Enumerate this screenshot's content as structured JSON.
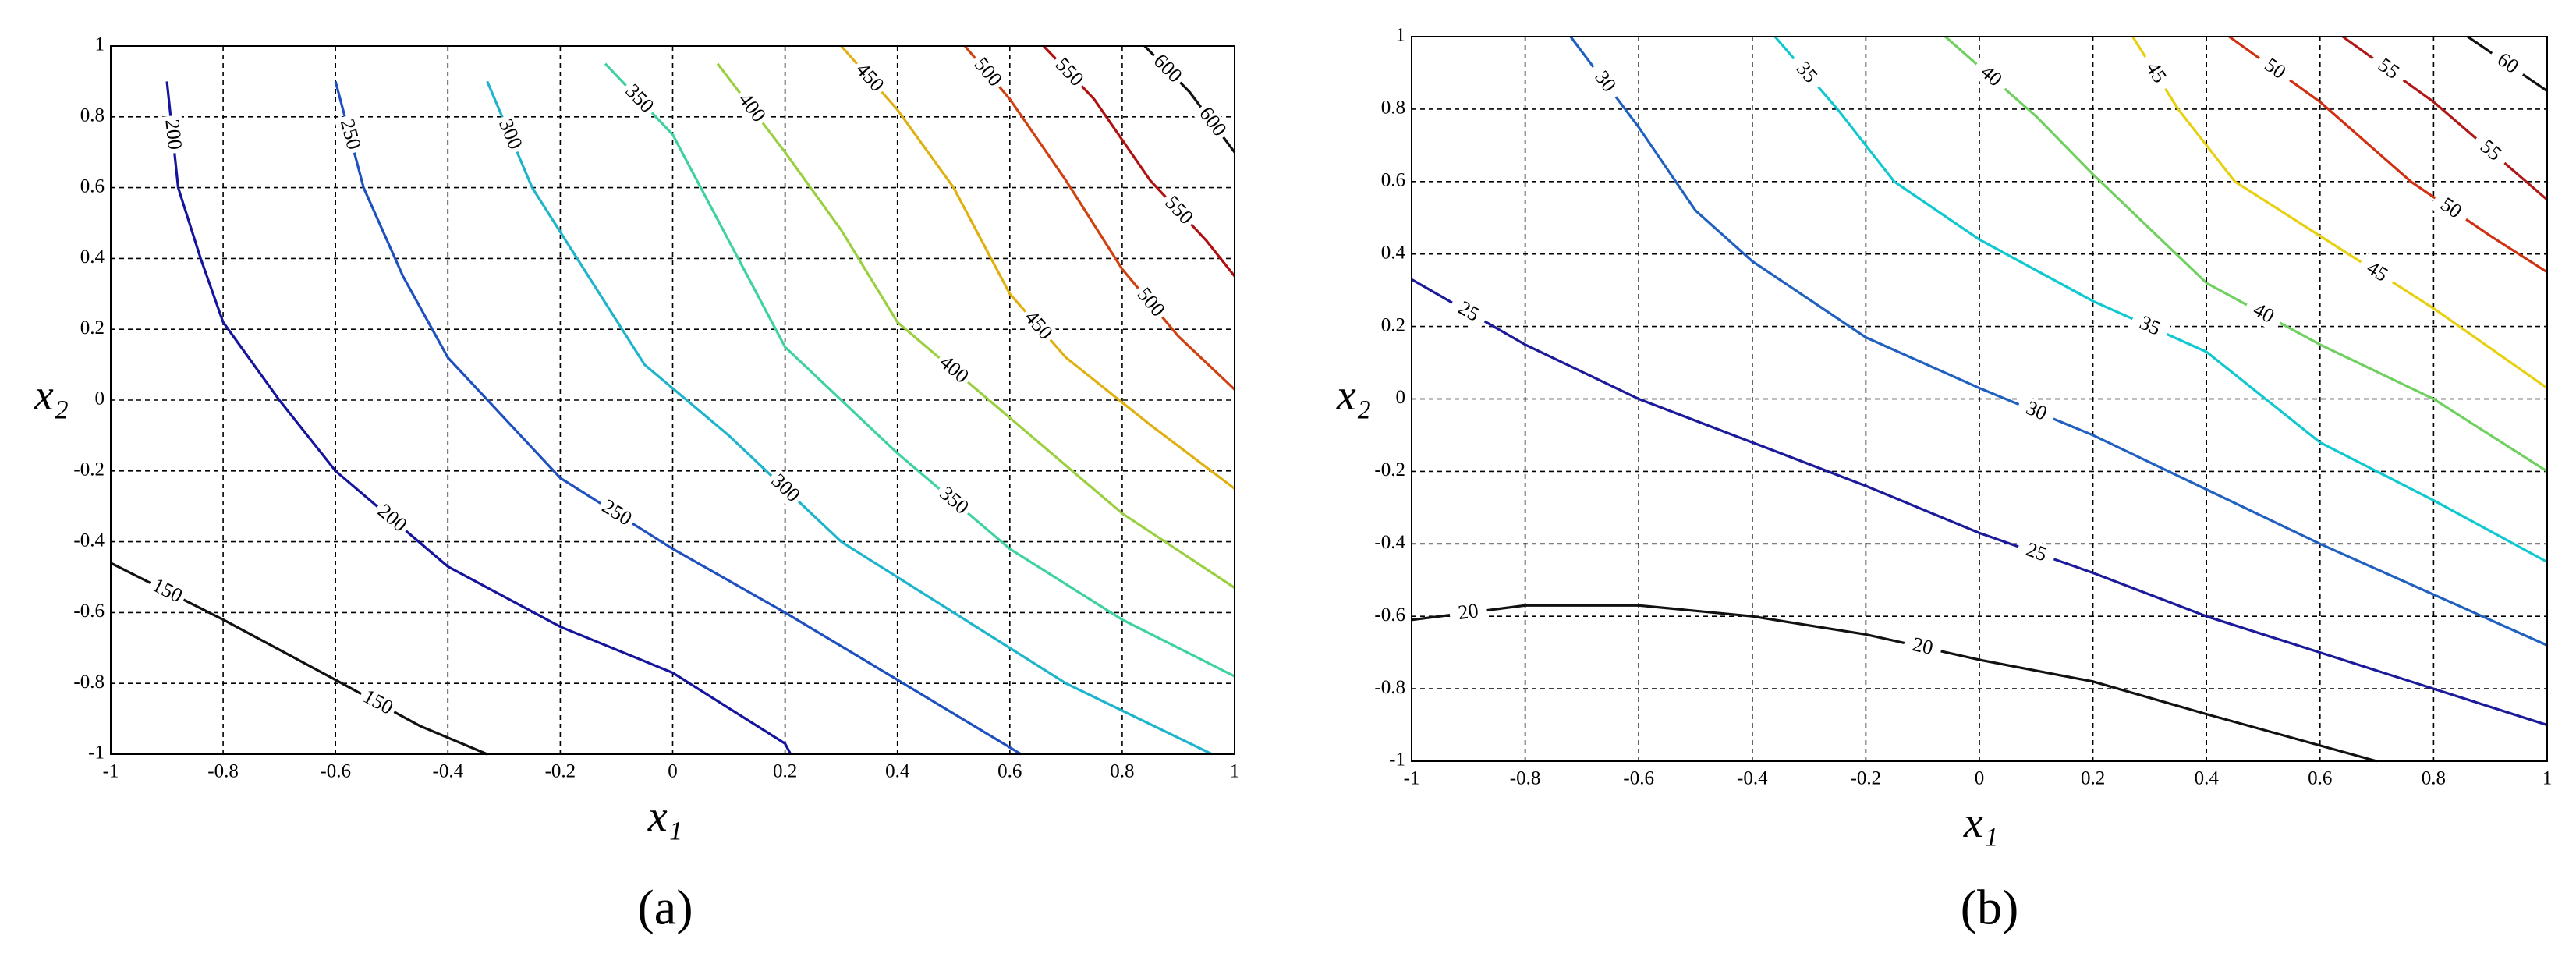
{
  "chart_data": [
    {
      "type": "contour",
      "xlabel": "x₁",
      "ylabel": "x₂",
      "caption": "(a)",
      "xlim": [
        -1,
        1
      ],
      "ylim": [
        -1,
        1
      ],
      "xticks": [
        -1,
        -0.8,
        -0.6,
        -0.4,
        -0.2,
        0,
        0.2,
        0.4,
        0.6,
        0.8,
        1
      ],
      "yticks": [
        -1,
        -0.8,
        -0.6,
        -0.4,
        -0.2,
        0,
        0.2,
        0.4,
        0.6,
        0.8,
        1
      ],
      "grid": true,
      "series": [
        {
          "level": 150,
          "color": "#111111",
          "x": [
            -1,
            -0.8,
            -0.6,
            -0.45,
            -0.33
          ],
          "y": [
            -0.46,
            -0.62,
            -0.79,
            -0.92,
            -1
          ]
        },
        {
          "level": 200,
          "color": "#14149c",
          "x": [
            -0.9,
            -0.88,
            -0.84,
            -0.8,
            -0.7,
            -0.6,
            -0.4,
            -0.2,
            0,
            0.2,
            0.21
          ],
          "y": [
            0.9,
            0.6,
            0.4,
            0.22,
            0.0,
            -0.2,
            -0.47,
            -0.64,
            -0.77,
            -0.97,
            -1
          ]
        },
        {
          "level": 250,
          "color": "#1f50c0",
          "x": [
            -0.6,
            -0.55,
            -0.48,
            -0.4,
            -0.2,
            0,
            0.2,
            0.4,
            0.62
          ],
          "y": [
            0.9,
            0.6,
            0.35,
            0.12,
            -0.22,
            -0.42,
            -0.6,
            -0.79,
            -1
          ]
        },
        {
          "level": 300,
          "color": "#1eb4cc",
          "x": [
            -0.33,
            -0.25,
            -0.15,
            -0.05,
            0.1,
            0.3,
            0.5,
            0.7,
            0.96
          ],
          "y": [
            0.9,
            0.6,
            0.35,
            0.1,
            -0.1,
            -0.4,
            -0.6,
            -0.8,
            -1
          ]
        },
        {
          "level": 350,
          "color": "#3ed2a0",
          "x": [
            -0.12,
            0,
            0.1,
            0.2,
            0.4,
            0.6,
            0.8,
            1
          ],
          "y": [
            0.95,
            0.75,
            0.45,
            0.15,
            -0.15,
            -0.42,
            -0.62,
            -0.78
          ]
        },
        {
          "level": 400,
          "color": "#9ad040",
          "x": [
            0.08,
            0.2,
            0.3,
            0.4,
            0.6,
            0.8,
            1
          ],
          "y": [
            0.95,
            0.7,
            0.48,
            0.22,
            -0.05,
            -0.32,
            -0.53
          ]
        },
        {
          "level": 450,
          "color": "#e0b010",
          "x": [
            0.3,
            0.4,
            0.5,
            0.6,
            0.7,
            0.85,
            1
          ],
          "y": [
            1,
            0.82,
            0.6,
            0.3,
            0.12,
            -0.07,
            -0.25
          ]
        },
        {
          "level": 500,
          "color": "#d04010",
          "x": [
            0.52,
            0.6,
            0.7,
            0.8,
            0.9,
            1
          ],
          "y": [
            1,
            0.85,
            0.62,
            0.37,
            0.18,
            0.03
          ]
        },
        {
          "level": 550,
          "color": "#b01010",
          "x": [
            0.66,
            0.75,
            0.85,
            0.95,
            1
          ],
          "y": [
            1,
            0.85,
            0.62,
            0.45,
            0.35
          ]
        },
        {
          "level": 600,
          "color": "#111111",
          "x": [
            0.84,
            0.92,
            1
          ],
          "y": [
            1,
            0.87,
            0.7
          ]
        }
      ]
    },
    {
      "type": "contour",
      "xlabel": "x₁",
      "ylabel": "x₂",
      "caption": "(b)",
      "xlim": [
        -1,
        1
      ],
      "ylim": [
        -1,
        1
      ],
      "xticks": [
        -1,
        -0.8,
        -0.6,
        -0.4,
        -0.2,
        0,
        0.2,
        0.4,
        0.6,
        0.8,
        1
      ],
      "yticks": [
        -1,
        -0.8,
        -0.6,
        -0.4,
        -0.2,
        0,
        0.2,
        0.4,
        0.6,
        0.8,
        1
      ],
      "grid": true,
      "series": [
        {
          "level": 20,
          "color": "#111111",
          "x": [
            -1,
            -0.8,
            -0.6,
            -0.4,
            -0.2,
            0,
            0.2,
            0.4,
            0.7
          ],
          "y": [
            -0.61,
            -0.57,
            -0.57,
            -0.6,
            -0.65,
            -0.72,
            -0.78,
            -0.87,
            -1
          ]
        },
        {
          "level": 25,
          "color": "#1a1a9a",
          "x": [
            -1,
            -0.8,
            -0.6,
            -0.4,
            -0.2,
            0,
            0.2,
            0.4,
            0.6,
            0.8,
            1
          ],
          "y": [
            0.33,
            0.15,
            0.0,
            -0.12,
            -0.24,
            -0.37,
            -0.48,
            -0.6,
            -0.7,
            -0.8,
            -0.9
          ]
        },
        {
          "level": 30,
          "color": "#2060c0",
          "x": [
            -0.72,
            -0.6,
            -0.5,
            -0.4,
            -0.2,
            0,
            0.2,
            0.4,
            0.6,
            0.8,
            1
          ],
          "y": [
            1,
            0.75,
            0.52,
            0.38,
            0.17,
            0.03,
            -0.1,
            -0.25,
            -0.4,
            -0.54,
            -0.68
          ]
        },
        {
          "level": 35,
          "color": "#10c8d0",
          "x": [
            -0.36,
            -0.25,
            -0.15,
            0,
            0.2,
            0.4,
            0.6,
            0.8,
            1
          ],
          "y": [
            1,
            0.8,
            0.6,
            0.44,
            0.27,
            0.13,
            -0.12,
            -0.28,
            -0.45
          ]
        },
        {
          "level": 40,
          "color": "#70d060",
          "x": [
            -0.06,
            0.1,
            0.2,
            0.4,
            0.6,
            0.8,
            1
          ],
          "y": [
            1,
            0.78,
            0.62,
            0.32,
            0.15,
            0.0,
            -0.2
          ]
        },
        {
          "level": 45,
          "color": "#e8d010",
          "x": [
            0.27,
            0.35,
            0.45,
            0.6,
            0.8,
            1
          ],
          "y": [
            1,
            0.8,
            0.6,
            0.45,
            0.25,
            0.03
          ]
        },
        {
          "level": 50,
          "color": "#d03010",
          "x": [
            0.44,
            0.6,
            0.76,
            0.9,
            1
          ],
          "y": [
            1,
            0.82,
            0.6,
            0.45,
            0.35
          ]
        },
        {
          "level": 55,
          "color": "#b01818",
          "x": [
            0.64,
            0.8,
            1
          ],
          "y": [
            1,
            0.82,
            0.55
          ]
        },
        {
          "level": 60,
          "color": "#111111",
          "x": [
            0.86,
            1
          ],
          "y": [
            1,
            0.85
          ]
        }
      ]
    }
  ]
}
